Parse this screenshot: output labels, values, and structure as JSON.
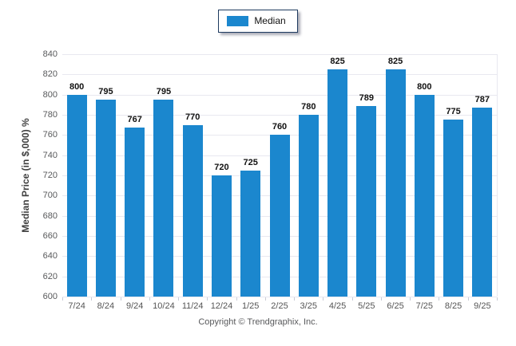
{
  "legend": {
    "label": "Median",
    "swatch_color": "#1b87ce"
  },
  "footer": {
    "copyright": "Copyright © Trendgraphix, Inc."
  },
  "chart_data": {
    "type": "bar",
    "title": "",
    "xlabel": "",
    "ylabel": "Median Price (in $,000) %",
    "categories": [
      "7/24",
      "8/24",
      "9/24",
      "10/24",
      "11/24",
      "12/24",
      "1/25",
      "2/25",
      "3/25",
      "4/25",
      "5/25",
      "6/25",
      "7/25",
      "8/25",
      "9/25"
    ],
    "series": [
      {
        "name": "Median",
        "values": [
          800,
          795,
          767,
          795,
          770,
          720,
          725,
          760,
          780,
          825,
          789,
          825,
          800,
          775,
          787
        ]
      }
    ],
    "ylim": [
      600,
      840
    ],
    "ytick_step": 20,
    "grid": "horizontal",
    "legend_position": "top-center",
    "bar_color": "#1b87ce",
    "value_labels": true
  }
}
